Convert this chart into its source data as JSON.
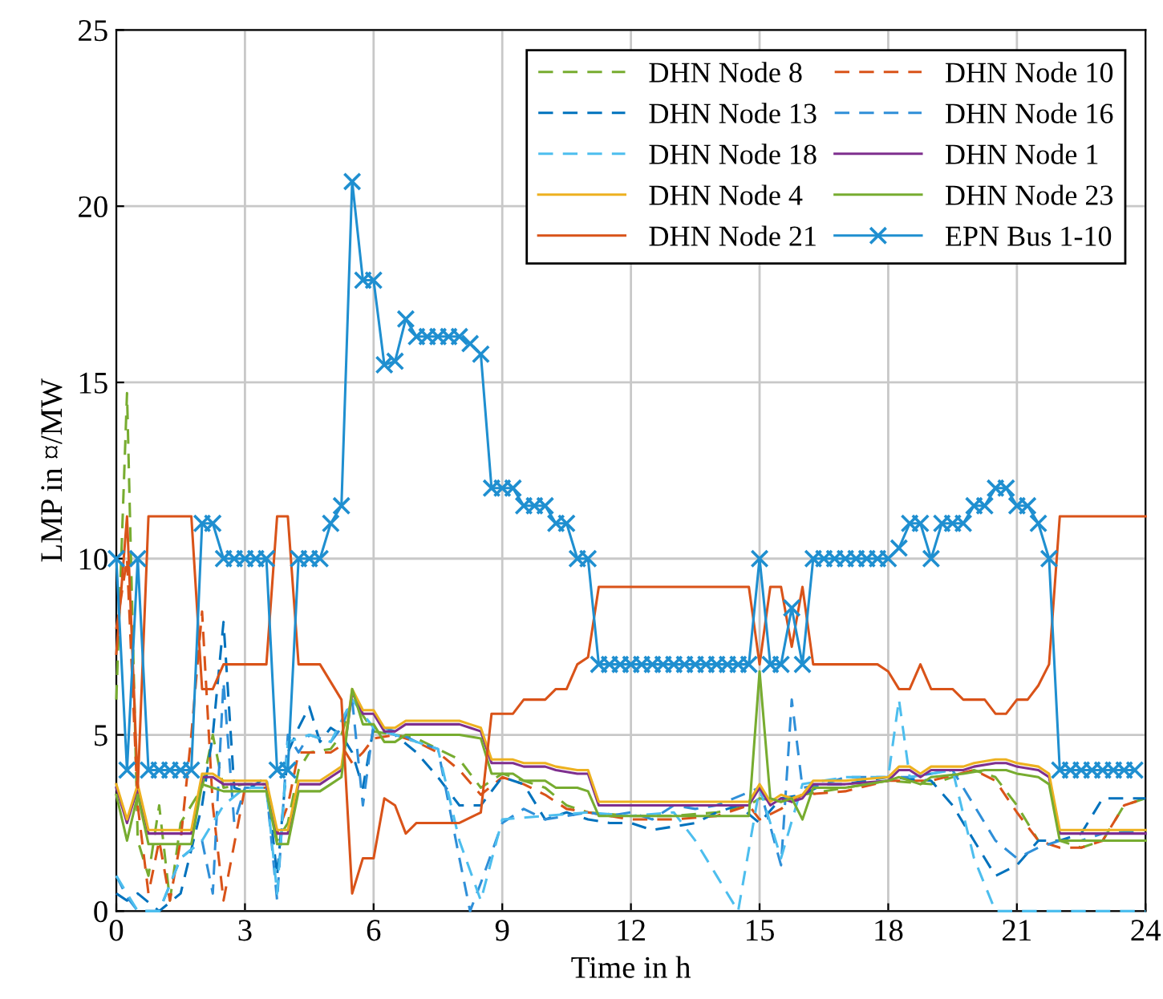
{
  "chart_data": {
    "type": "line",
    "xlabel": "Time in h",
    "ylabel": "LMP in ¤/MW",
    "xlim": [
      0,
      24
    ],
    "ylim": [
      0,
      25
    ],
    "xticks": [
      0,
      3,
      6,
      9,
      12,
      15,
      18,
      21,
      24
    ],
    "yticks": [
      0,
      5,
      10,
      15,
      20,
      25
    ],
    "grid": true,
    "legend": "top right",
    "series": [
      {
        "name": "DHN Node 8",
        "color": "#77ac30",
        "line_style": "dashed",
        "marker": "none",
        "x": [
          0,
          0.25,
          0.5,
          0.75,
          1,
          1.25,
          1.5,
          2,
          2.25,
          2.5,
          3,
          3.5,
          3.75,
          4,
          4.25,
          4.5,
          5,
          5.25,
          5.5,
          6,
          6.5,
          7,
          7.5,
          8,
          8.5,
          9,
          9.5,
          10,
          10.5,
          11,
          12,
          13,
          14,
          14.75,
          15,
          15.5,
          16,
          17,
          18,
          19,
          20,
          20.5,
          21,
          21.5,
          22,
          22.5,
          23,
          23.5,
          24
        ],
        "values": [
          6,
          14.7,
          2,
          1,
          3,
          0.3,
          2.5,
          3.5,
          5,
          3.5,
          3.6,
          3.6,
          2,
          2.5,
          4,
          4.5,
          4.6,
          5,
          6,
          5.1,
          5,
          4.9,
          4.6,
          4.3,
          3.5,
          3.9,
          3.7,
          3.5,
          3,
          2.8,
          2.7,
          2.7,
          2.8,
          3,
          3.2,
          3.1,
          3.3,
          3.5,
          3.7,
          3.6,
          4,
          3.8,
          3,
          2,
          2,
          1.8,
          2,
          3,
          3.2
        ]
      },
      {
        "name": "DHN Node 10",
        "color": "#d95319",
        "line_style": "dashed",
        "marker": "none",
        "x": [
          0,
          0.25,
          0.5,
          0.75,
          1,
          1.25,
          1.5,
          1.75,
          2,
          2.25,
          2.5,
          3,
          3.5,
          3.75,
          4,
          4.25,
          4.75,
          5,
          5.25,
          5.5,
          5.75,
          6,
          6.5,
          7,
          7.5,
          8,
          8.5,
          9,
          9.5,
          10,
          10.5,
          11,
          12,
          13,
          14,
          14.75,
          15,
          15.5,
          16,
          17,
          18,
          19,
          20,
          20.5,
          21,
          21.5,
          22,
          22.5,
          23,
          23.5,
          24
        ],
        "values": [
          8,
          10,
          3,
          0.5,
          2,
          0.3,
          2,
          5,
          8.5,
          3,
          0.3,
          3.5,
          3.5,
          2.2,
          3,
          4.5,
          4.5,
          4.5,
          4.7,
          4.2,
          4.5,
          4.9,
          5,
          4.8,
          4.5,
          4,
          3.3,
          3.8,
          3.6,
          3.3,
          2.9,
          2.8,
          2.6,
          2.6,
          2.7,
          3,
          2.6,
          2.9,
          3.3,
          3.4,
          3.7,
          3.7,
          4,
          3.7,
          2.8,
          2,
          1.8,
          1.8,
          2,
          3,
          3.2
        ]
      },
      {
        "name": "DHN Node 13",
        "color": "#0072bd",
        "line_style": "dashed",
        "marker": "none",
        "x": [
          0,
          0.25,
          0.5,
          1,
          1.5,
          2,
          2.25,
          2.5,
          2.75,
          3,
          3.5,
          3.75,
          4,
          4.25,
          4.5,
          4.75,
          5,
          5.25,
          5.5,
          5.75,
          6,
          6.5,
          7,
          7.5,
          8,
          8.5,
          9,
          9.5,
          10,
          10.5,
          11,
          11.5,
          12,
          12.5,
          13,
          13.5,
          14,
          14.5,
          15,
          15.5,
          16,
          16.5,
          17,
          18,
          19,
          19.5,
          20,
          20.5,
          21,
          21.5,
          22,
          22.5,
          23,
          24
        ],
        "values": [
          0.5,
          0.3,
          0.5,
          0,
          0.5,
          3,
          5,
          8.2,
          3.5,
          3.4,
          3.8,
          1,
          4.5,
          5.2,
          5.8,
          4.8,
          5.2,
          5,
          4.5,
          3.5,
          5.2,
          5,
          4.5,
          3.8,
          3,
          3,
          3.8,
          3.6,
          2.6,
          2.8,
          2.6,
          2.5,
          2.5,
          2.3,
          2.4,
          2.5,
          2.8,
          3,
          2.5,
          3.2,
          3.3,
          3.6,
          3.6,
          3.8,
          3.7,
          3,
          2,
          1,
          1.3,
          2,
          2,
          2.2,
          3.2,
          3.2
        ]
      },
      {
        "name": "DHN Node 16",
        "color": "#2f8fd8",
        "line_style": "dashed",
        "marker": "none",
        "x": [
          0,
          0.25,
          0.5,
          1,
          1.5,
          2,
          2.25,
          2.5,
          2.75,
          3,
          3.5,
          3.75,
          4,
          4.25,
          4.5,
          5,
          5.25,
          5.5,
          5.75,
          6,
          6.5,
          7,
          7.5,
          8,
          8.25,
          8.5,
          9,
          9.5,
          10,
          10.5,
          11,
          11.5,
          12,
          12.5,
          13,
          13.5,
          14,
          15,
          15.5,
          15.75,
          16,
          16.5,
          17,
          18,
          18.5,
          19,
          19.5,
          20,
          20.5,
          21,
          21.5,
          22,
          22.5,
          23,
          24
        ],
        "values": [
          1,
          0.4,
          0,
          0,
          1.5,
          2,
          0.5,
          6.5,
          2.5,
          3.5,
          3.5,
          0.3,
          5,
          4.5,
          5,
          4.8,
          5.2,
          6,
          3,
          5.3,
          5.1,
          4.8,
          4.6,
          1.5,
          0,
          0.8,
          2.5,
          2.9,
          2.6,
          2.7,
          2.8,
          2.7,
          2.8,
          2.6,
          3,
          2.9,
          3,
          3.5,
          1.3,
          6,
          3.5,
          3.6,
          3.8,
          3.8,
          3.8,
          3.9,
          4,
          3,
          2,
          1.5,
          1.8,
          2,
          2,
          2.2,
          2.3
        ]
      },
      {
        "name": "DHN Node 18",
        "color": "#4dbeee",
        "line_style": "dashed",
        "marker": "none",
        "x": [
          0,
          0.5,
          1,
          1.5,
          2,
          2.5,
          3,
          3.5,
          3.75,
          4,
          4.5,
          5,
          5.5,
          6,
          6.5,
          7,
          7.5,
          8,
          8.5,
          9,
          10,
          11,
          12,
          13,
          13.5,
          14,
          14.5,
          15,
          15.5,
          16,
          17,
          18,
          18.25,
          18.5,
          19,
          19.5,
          20,
          20.5,
          21,
          22,
          23,
          24
        ],
        "values": [
          1,
          0,
          0,
          1.5,
          2,
          3,
          3.5,
          3.5,
          0.5,
          4.8,
          5,
          4.8,
          6,
          5.2,
          5,
          4.8,
          4.6,
          2,
          0.3,
          2.6,
          2.7,
          2.8,
          2.7,
          2.8,
          2,
          1,
          0,
          3.5,
          1.5,
          3.6,
          3.8,
          3.8,
          6,
          3.8,
          3.9,
          4,
          1.5,
          0,
          0,
          0,
          0,
          0
        ]
      },
      {
        "name": "DHN Node 1",
        "color": "#7e2f8e",
        "line_style": "solid",
        "marker": "none",
        "x": [
          0,
          0.25,
          0.5,
          0.75,
          1.75,
          2,
          2.25,
          2.5,
          3.5,
          3.75,
          4,
          4.25,
          4.75,
          5,
          5.25,
          5.5,
          5.75,
          6,
          6.25,
          6.5,
          6.75,
          7,
          8,
          8.25,
          8.5,
          8.75,
          9.25,
          9.5,
          10,
          10.25,
          10.75,
          11,
          11.25,
          14.75,
          15,
          15.25,
          15.5,
          15.75,
          16,
          16.25,
          17,
          18,
          18.25,
          18.5,
          18.75,
          19,
          19.75,
          20,
          20.5,
          20.75,
          21,
          21.5,
          21.75,
          22,
          24
        ],
        "values": [
          3.5,
          2.5,
          3.5,
          2.2,
          2.2,
          3.8,
          3.8,
          3.6,
          3.6,
          2.2,
          2.2,
          3.6,
          3.6,
          3.8,
          4,
          6.2,
          5.6,
          5.6,
          5.1,
          5.1,
          5.3,
          5.3,
          5.3,
          5.2,
          5.1,
          4.2,
          4.2,
          4.1,
          4.1,
          4,
          3.9,
          3.9,
          3,
          3,
          3.5,
          3,
          3.2,
          3.1,
          3.2,
          3.6,
          3.6,
          3.7,
          4,
          4,
          3.8,
          4,
          4,
          4.1,
          4.2,
          4.2,
          4.1,
          4,
          3.8,
          2.2,
          2.2
        ]
      },
      {
        "name": "DHN Node 4",
        "color": "#edb120",
        "line_style": "solid",
        "marker": "none",
        "x": [
          0,
          0.25,
          0.5,
          0.75,
          1.75,
          2,
          2.25,
          2.5,
          3.5,
          3.75,
          4,
          4.25,
          4.75,
          5,
          5.25,
          5.5,
          5.75,
          6,
          6.25,
          6.5,
          6.75,
          7,
          8,
          8.25,
          8.5,
          8.75,
          9.25,
          9.5,
          10,
          10.25,
          10.75,
          11,
          11.25,
          14.75,
          15,
          15.25,
          15.5,
          15.75,
          16,
          16.25,
          17,
          18,
          18.25,
          18.5,
          18.75,
          19,
          19.75,
          20,
          20.5,
          20.75,
          21,
          21.5,
          21.75,
          22,
          24
        ],
        "values": [
          3.6,
          2.6,
          3.6,
          2.3,
          2.3,
          3.9,
          3.9,
          3.7,
          3.7,
          2.3,
          2.3,
          3.7,
          3.7,
          3.9,
          4.1,
          6.3,
          5.7,
          5.7,
          5.2,
          5.2,
          5.4,
          5.4,
          5.4,
          5.3,
          5.2,
          4.3,
          4.3,
          4.2,
          4.2,
          4.1,
          4,
          4,
          3.1,
          3.1,
          3.6,
          3.1,
          3.3,
          3.2,
          3.3,
          3.7,
          3.7,
          3.8,
          4.1,
          4.1,
          3.9,
          4.1,
          4.1,
          4.2,
          4.3,
          4.3,
          4.2,
          4.1,
          3.9,
          2.3,
          2.3
        ]
      },
      {
        "name": "DHN Node 23",
        "color": "#77ac30",
        "line_style": "solid",
        "marker": "none",
        "x": [
          0,
          0.25,
          0.5,
          0.75,
          1.75,
          2,
          2.5,
          3.5,
          3.75,
          4,
          4.25,
          4.75,
          5,
          5.25,
          5.5,
          5.75,
          6,
          6.25,
          6.5,
          6.75,
          8,
          8.5,
          8.75,
          9.25,
          9.5,
          10,
          10.25,
          10.75,
          11,
          11.25,
          14.75,
          15,
          15.25,
          15.5,
          15.75,
          16,
          16.25,
          17,
          18,
          18.25,
          18.75,
          19,
          19.75,
          20.25,
          20.75,
          21,
          21.5,
          21.75,
          22,
          24
        ],
        "values": [
          3.3,
          2,
          3.3,
          1.9,
          1.9,
          3.6,
          3.4,
          3.4,
          1.9,
          1.9,
          3.4,
          3.4,
          3.6,
          3.8,
          6.3,
          5.3,
          5.3,
          4.8,
          4.8,
          5,
          5,
          4.9,
          3.9,
          3.9,
          3.7,
          3.7,
          3.5,
          3.5,
          3.4,
          2.7,
          2.7,
          6.8,
          3.2,
          3.1,
          3.2,
          2.6,
          3.5,
          3.5,
          3.7,
          3.8,
          3.6,
          3.8,
          3.9,
          4,
          4,
          3.9,
          3.8,
          3.6,
          2,
          2
        ]
      },
      {
        "name": "DHN Node 21",
        "color": "#d95319",
        "line_style": "solid",
        "marker": "none",
        "x": [
          0,
          0.25,
          0.5,
          0.75,
          1.75,
          2,
          2.25,
          2.5,
          3.5,
          3.75,
          4,
          4.25,
          4.75,
          5,
          5.25,
          5.5,
          5.75,
          6,
          6.25,
          6.5,
          6.75,
          7,
          8,
          8.5,
          8.75,
          9.25,
          9.5,
          10,
          10.25,
          10.5,
          10.75,
          11,
          11.25,
          14.75,
          15,
          15.25,
          15.5,
          15.75,
          16,
          16.25,
          17.75,
          18,
          18.25,
          18.5,
          18.75,
          19,
          19.5,
          19.75,
          20.25,
          20.5,
          20.75,
          21,
          21.25,
          21.5,
          21.75,
          22,
          24
        ],
        "values": [
          7.3,
          11.2,
          3.5,
          11.2,
          11.2,
          6.3,
          6.3,
          7,
          7,
          11.2,
          11.2,
          7,
          7,
          6.5,
          6,
          0.5,
          1.5,
          1.5,
          3.2,
          3,
          2.2,
          2.5,
          2.5,
          2.8,
          5.6,
          5.6,
          6,
          6,
          6.3,
          6.3,
          7,
          7.2,
          9.2,
          9.2,
          7,
          9.2,
          9.2,
          7.5,
          9.2,
          7,
          7,
          6.8,
          6.3,
          6.3,
          7,
          6.3,
          6.3,
          6,
          6,
          5.6,
          5.6,
          6,
          6,
          6.4,
          7,
          11.2,
          11.2
        ]
      },
      {
        "name": "EPN Bus 1-10",
        "color": "#1f8fd0",
        "line_style": "solid",
        "marker": "cross",
        "x": [
          0,
          0.25,
          0.5,
          0.75,
          1,
          1.25,
          1.5,
          1.75,
          2,
          2.25,
          2.5,
          2.75,
          3,
          3.25,
          3.5,
          3.75,
          4,
          4.25,
          4.5,
          4.75,
          5,
          5.25,
          5.5,
          5.75,
          6,
          6.25,
          6.5,
          6.75,
          7,
          7.25,
          7.5,
          7.75,
          8,
          8.25,
          8.5,
          8.75,
          9,
          9.25,
          9.5,
          9.75,
          10,
          10.25,
          10.5,
          10.75,
          11,
          11.25,
          11.5,
          11.75,
          12,
          12.25,
          12.5,
          12.75,
          13,
          13.25,
          13.5,
          13.75,
          14,
          14.25,
          14.5,
          14.75,
          15,
          15.25,
          15.5,
          15.75,
          16,
          16.25,
          16.5,
          16.75,
          17,
          17.25,
          17.5,
          17.75,
          18,
          18.25,
          18.5,
          18.75,
          19,
          19.25,
          19.5,
          19.75,
          20,
          20.25,
          20.5,
          20.75,
          21,
          21.25,
          21.5,
          21.75,
          22,
          22.25,
          22.5,
          22.75,
          23,
          23.25,
          23.5,
          23.75
        ],
        "values": [
          10,
          4,
          10,
          4,
          4,
          4,
          4,
          4,
          11,
          11,
          10,
          10,
          10,
          10,
          10,
          4,
          4,
          10,
          10,
          10,
          11,
          11.5,
          20.7,
          17.9,
          17.9,
          15.5,
          15.6,
          16.8,
          16.3,
          16.3,
          16.3,
          16.3,
          16.3,
          16.1,
          15.8,
          12,
          12,
          12,
          11.5,
          11.5,
          11.5,
          11,
          11,
          10,
          10,
          7,
          7,
          7,
          7,
          7,
          7,
          7,
          7,
          7,
          7,
          7,
          7,
          7,
          7,
          7,
          10,
          7,
          7,
          8.6,
          7,
          10,
          10,
          10,
          10,
          10,
          10,
          10,
          10,
          10.3,
          11,
          11,
          10,
          11,
          11,
          11,
          11.5,
          11.5,
          12,
          12,
          11.5,
          11.5,
          11,
          10,
          4,
          4,
          4,
          4,
          4,
          4,
          4,
          4
        ]
      }
    ]
  }
}
